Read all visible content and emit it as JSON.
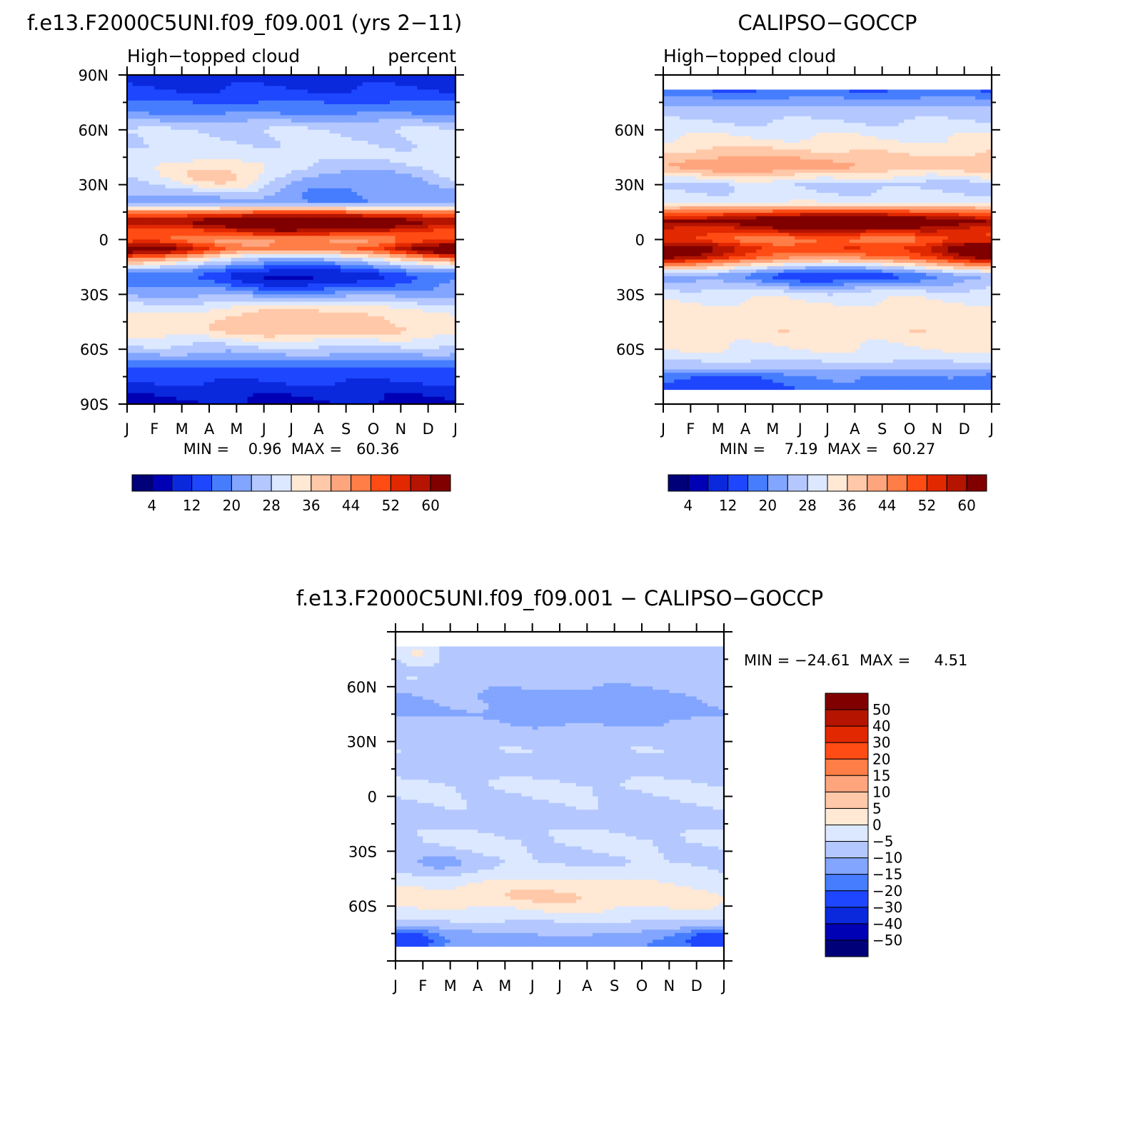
{
  "colors": {
    "abs_palette": [
      "#000078",
      "#0000b4",
      "#0a28dc",
      "#1e46ff",
      "#467dff",
      "#82a5ff",
      "#b4c8ff",
      "#dce8ff",
      "#ffe8d4",
      "#ffc8a8",
      "#ffa57e",
      "#ff7d46",
      "#ff4b14",
      "#e12800",
      "#b41400",
      "#800000"
    ],
    "diff_palette": [
      "#000078",
      "#0000b4",
      "#0a28dc",
      "#1e46ff",
      "#467dff",
      "#82a5ff",
      "#b4c8ff",
      "#dce8ff",
      "#ffe8d4",
      "#ffc8a8",
      "#ffa57e",
      "#ff7d46",
      "#ff4b14",
      "#e12800",
      "#b41400",
      "#800000"
    ]
  },
  "chart_data": [
    {
      "type": "heatmap",
      "title": "f.e13.F2000C5UNI.f09_f09.001 (yrs 2−11)",
      "subtitle_left": "High−topped cloud",
      "subtitle_right": "percent",
      "stats": "MIN =    0.96  MAX =   60.36",
      "x_ticks": [
        "J",
        "F",
        "M",
        "A",
        "M",
        "J",
        "J",
        "A",
        "S",
        "O",
        "N",
        "D",
        "J"
      ],
      "y_ticks": [
        "90N",
        "60N",
        "30N",
        "0",
        "30S",
        "60S",
        "90S"
      ],
      "y_tick_values": [
        90,
        60,
        30,
        0,
        -30,
        -60,
        -90
      ],
      "ylim": [
        -90,
        90
      ],
      "data_lat_range": [
        -90,
        90
      ],
      "colorbar_labels": [
        "4",
        "12",
        "20",
        "28",
        "36",
        "44",
        "52",
        "60"
      ],
      "levels": [
        0,
        4,
        8,
        12,
        16,
        20,
        24,
        28,
        32,
        36,
        40,
        44,
        48,
        52,
        56,
        60
      ],
      "zonal_profile": {
        "lat": [
          -90,
          -80,
          -70,
          -60,
          -50,
          -40,
          -30,
          -20,
          -10,
          -5,
          0,
          5,
          10,
          15,
          20,
          30,
          40,
          50,
          60,
          70,
          80,
          90
        ],
        "value": [
          3,
          7,
          12,
          22,
          30,
          27,
          20,
          14,
          26,
          42,
          36,
          44,
          54,
          40,
          17,
          23,
          26,
          25,
          24,
          15,
          9,
          5
        ]
      },
      "features": [
        {
          "month": 6.5,
          "lat": 8,
          "amp": 14,
          "w_month": 2.8,
          "w_lat": 5
        },
        {
          "month": 0.8,
          "lat": -7,
          "amp": 12,
          "w_month": 1.8,
          "w_lat": 5
        },
        {
          "month": 11.2,
          "lat": -7,
          "amp": 12,
          "w_month": 1.8,
          "w_lat": 5
        },
        {
          "month": 6.5,
          "lat": -20,
          "amp": -12,
          "w_month": 2.5,
          "w_lat": 8
        },
        {
          "month": 6.5,
          "lat": -43,
          "amp": 8,
          "w_month": 2.5,
          "w_lat": 8
        },
        {
          "month": 3.5,
          "lat": 34,
          "amp": 9,
          "w_month": 1.8,
          "w_lat": 6
        },
        {
          "month": 8.0,
          "lat": 32,
          "amp": -8,
          "w_month": 2.0,
          "w_lat": 7
        }
      ]
    },
    {
      "type": "heatmap",
      "title": "CALIPSO−GOCCP",
      "subtitle_left": "High−topped cloud",
      "stats": "MIN =    7.19  MAX =   60.27",
      "x_ticks": [
        "J",
        "F",
        "M",
        "A",
        "M",
        "J",
        "J",
        "A",
        "S",
        "O",
        "N",
        "D",
        "J"
      ],
      "y_ticks": [
        "60N",
        "30N",
        "0",
        "30S",
        "60S"
      ],
      "y_tick_values": [
        60,
        30,
        0,
        -30,
        -60
      ],
      "ylim": [
        -90,
        90
      ],
      "data_lat_range": [
        -82,
        82
      ],
      "colorbar_labels": [
        "4",
        "12",
        "20",
        "28",
        "36",
        "44",
        "52",
        "60"
      ],
      "levels": [
        0,
        4,
        8,
        12,
        16,
        20,
        24,
        28,
        32,
        36,
        40,
        44,
        48,
        52,
        56,
        60
      ],
      "zonal_profile": {
        "lat": [
          -82,
          -75,
          -70,
          -60,
          -50,
          -40,
          -30,
          -20,
          -10,
          -5,
          0,
          5,
          10,
          15,
          20,
          30,
          40,
          50,
          60,
          70,
          82
        ],
        "value": [
          14,
          16,
          22,
          28,
          31,
          30,
          27,
          18,
          44,
          48,
          40,
          46,
          54,
          42,
          27,
          22,
          34,
          30,
          26,
          22,
          12
        ]
      },
      "features": [
        {
          "month": 6.5,
          "lat": 9,
          "amp": 12,
          "w_month": 3.0,
          "w_lat": 5
        },
        {
          "month": 0.5,
          "lat": -7,
          "amp": 8,
          "w_month": 1.6,
          "w_lat": 6
        },
        {
          "month": 11.5,
          "lat": -7,
          "amp": 8,
          "w_month": 1.6,
          "w_lat": 6
        },
        {
          "month": 6.3,
          "lat": -18,
          "amp": -12,
          "w_month": 2.3,
          "w_lat": 6
        },
        {
          "month": 3.5,
          "lat": 40,
          "amp": 6,
          "w_month": 2.5,
          "w_lat": 7
        },
        {
          "month": 2.0,
          "lat": -78,
          "amp": -6,
          "w_month": 1.5,
          "w_lat": 5
        }
      ]
    },
    {
      "type": "heatmap",
      "title": "f.e13.F2000C5UNI.f09_f09.001 − CALIPSO−GOCCP",
      "stats": "MIN = −24.61  MAX =     4.51",
      "x_ticks": [
        "J",
        "F",
        "M",
        "A",
        "M",
        "J",
        "J",
        "A",
        "S",
        "O",
        "N",
        "D",
        "J"
      ],
      "y_ticks": [
        "60N",
        "30N",
        "0",
        "30S",
        "60S"
      ],
      "y_tick_values": [
        60,
        30,
        0,
        -30,
        -60
      ],
      "ylim": [
        -90,
        90
      ],
      "data_lat_range": [
        -82,
        82
      ],
      "colorbar_labels": [
        "50",
        "40",
        "30",
        "20",
        "15",
        "10",
        "5",
        "0",
        "−5",
        "−10",
        "−15",
        "−20",
        "−30",
        "−40",
        "−50"
      ],
      "levels": [
        -50,
        -40,
        -30,
        -20,
        -15,
        -10,
        -5,
        0,
        5,
        10,
        15,
        20,
        30,
        40,
        50
      ],
      "zonal_profile": {
        "lat": [
          -82,
          -75,
          -65,
          -55,
          -45,
          -35,
          -25,
          -15,
          -5,
          5,
          15,
          25,
          35,
          45,
          55,
          65,
          75,
          82
        ],
        "value": [
          -13,
          -10,
          -3,
          1,
          -2,
          -6,
          -4,
          -6,
          -6,
          -4,
          -7,
          -6,
          -8,
          -10,
          -10,
          -6,
          -8,
          -7
        ]
      },
      "features": [
        {
          "month": 6.0,
          "lat": -54,
          "amp": 5,
          "w_month": 2.8,
          "w_lat": 7
        },
        {
          "month": 11.8,
          "lat": -78,
          "amp": -10,
          "w_month": 1.3,
          "w_lat": 4
        },
        {
          "month": 0.2,
          "lat": -78,
          "amp": -8,
          "w_month": 1.0,
          "w_lat": 4
        },
        {
          "month": 1.5,
          "lat": -38,
          "amp": -6,
          "w_month": 1.0,
          "w_lat": 5
        },
        {
          "month": 0.8,
          "lat": 78,
          "amp": 7,
          "w_month": 0.6,
          "w_lat": 5
        },
        {
          "month": 7.0,
          "lat": 50,
          "amp": -4,
          "w_month": 2.0,
          "w_lat": 8
        }
      ]
    }
  ]
}
